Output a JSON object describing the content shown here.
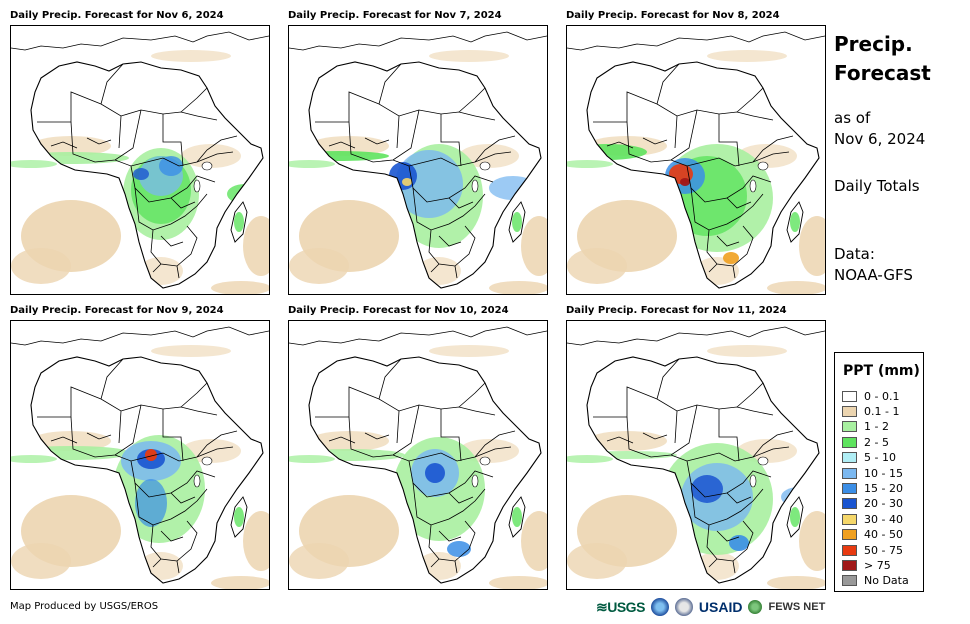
{
  "panels": [
    {
      "title": "Daily Precip. Forecast for Nov 6, 2024",
      "pattern": "d1"
    },
    {
      "title": "Daily Precip. Forecast for Nov 7, 2024",
      "pattern": "d2"
    },
    {
      "title": "Daily Precip. Forecast for Nov 8, 2024",
      "pattern": "d3"
    },
    {
      "title": "Daily Precip. Forecast for Nov 9, 2024",
      "pattern": "d4"
    },
    {
      "title": "Daily Precip. Forecast for Nov 10, 2024",
      "pattern": "d5"
    },
    {
      "title": "Daily Precip. Forecast for Nov 11, 2024",
      "pattern": "d6"
    }
  ],
  "sidebar": {
    "title_line1": "Precip.",
    "title_line2": "Forecast",
    "as_of_label": "as of",
    "as_of_date": "Nov 6, 2024",
    "totals_label": "Daily Totals",
    "data_label": "Data:",
    "data_source": "NOAA-GFS"
  },
  "legend": {
    "title": "PPT (mm)",
    "items": [
      {
        "label": "0 - 0.1",
        "color": "#ffffff"
      },
      {
        "label": "0.1 - 1",
        "color": "#ecd5b0"
      },
      {
        "label": "1 - 2",
        "color": "#a8f0a0"
      },
      {
        "label": "2 - 5",
        "color": "#5ee35e"
      },
      {
        "label": "5 - 10",
        "color": "#b0eef5"
      },
      {
        "label": "10 - 15",
        "color": "#7bb8f0"
      },
      {
        "label": "15 - 20",
        "color": "#3b8ee6"
      },
      {
        "label": "20 - 30",
        "color": "#1a55d0"
      },
      {
        "label": "30 - 40",
        "color": "#f5d76a"
      },
      {
        "label": "40 - 50",
        "color": "#f0a020"
      },
      {
        "label": "50 - 75",
        "color": "#e83a10"
      },
      {
        "label": "> 75",
        "color": "#a01818"
      },
      {
        "label": "No Data",
        "color": "#999999"
      }
    ]
  },
  "footer": {
    "credit": "Map Produced by USGS/EROS",
    "logo_usgs": "≋USGS",
    "logo_usaid": "USAID",
    "logo_fews": "FEWS NET"
  }
}
